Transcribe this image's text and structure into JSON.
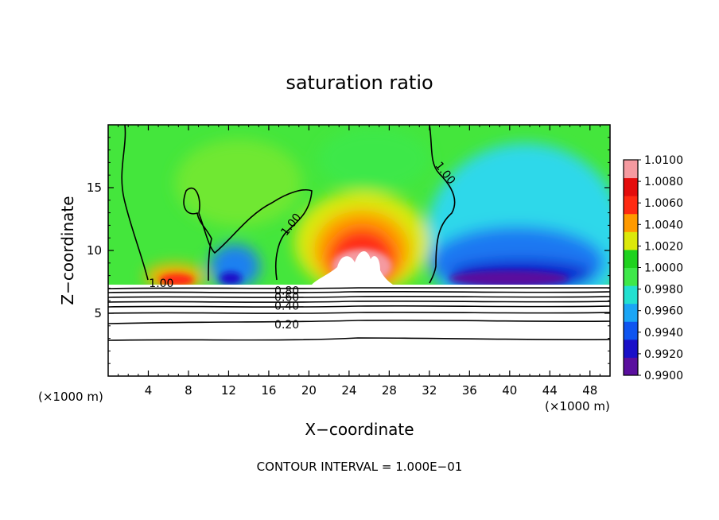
{
  "chart_data": {
    "type": "heatmap",
    "title": "saturation ratio",
    "xlabel": "X−coordinate",
    "ylabel": "Z−coordinate",
    "x_unit_left": "(×1000 m)",
    "x_unit_right": "(×1000 m)",
    "xlim": [
      0,
      50
    ],
    "ylim": [
      0,
      20
    ],
    "x_ticks": [
      4,
      8,
      12,
      16,
      20,
      24,
      28,
      32,
      36,
      40,
      44,
      48
    ],
    "y_ticks": [
      5,
      10,
      15
    ],
    "footer": "CONTOUR INTERVAL = 1.000E−01",
    "colorbar": {
      "levels": [
        0.99,
        0.992,
        0.994,
        0.996,
        0.998,
        1.0,
        1.002,
        1.004,
        1.006,
        1.008,
        1.01
      ],
      "labels": [
        "0.9900",
        "0.9920",
        "0.9940",
        "0.9960",
        "0.9980",
        "1.0000",
        "1.0020",
        "1.0040",
        "1.0060",
        "1.0080",
        "1.0100"
      ],
      "colors": [
        "#5a0f9e",
        "#1a10c8",
        "#0f55f0",
        "#1aa5f5",
        "#22e0d0",
        "#3ee84a",
        "#1fd21f",
        "#dce80a",
        "#ff9a00",
        "#ff2a12",
        "#e40c0c",
        "#f59aa0"
      ]
    },
    "contour_labels": [
      {
        "text": "1.00",
        "x": 5.3,
        "z": 7.4
      },
      {
        "text": "1.00",
        "x": 18.5,
        "z": 12.2
      },
      {
        "text": "1.00",
        "x": 33.3,
        "z": 16.3
      },
      {
        "text": "0.80",
        "x": 17.8,
        "z": 6.8
      },
      {
        "text": "0.60",
        "x": 17.8,
        "z": 6.3
      },
      {
        "text": "0.40",
        "x": 17.8,
        "z": 5.6
      },
      {
        "text": "0.20",
        "x": 17.8,
        "z": 4.1
      }
    ],
    "cloud_base_z": 7.3
  }
}
